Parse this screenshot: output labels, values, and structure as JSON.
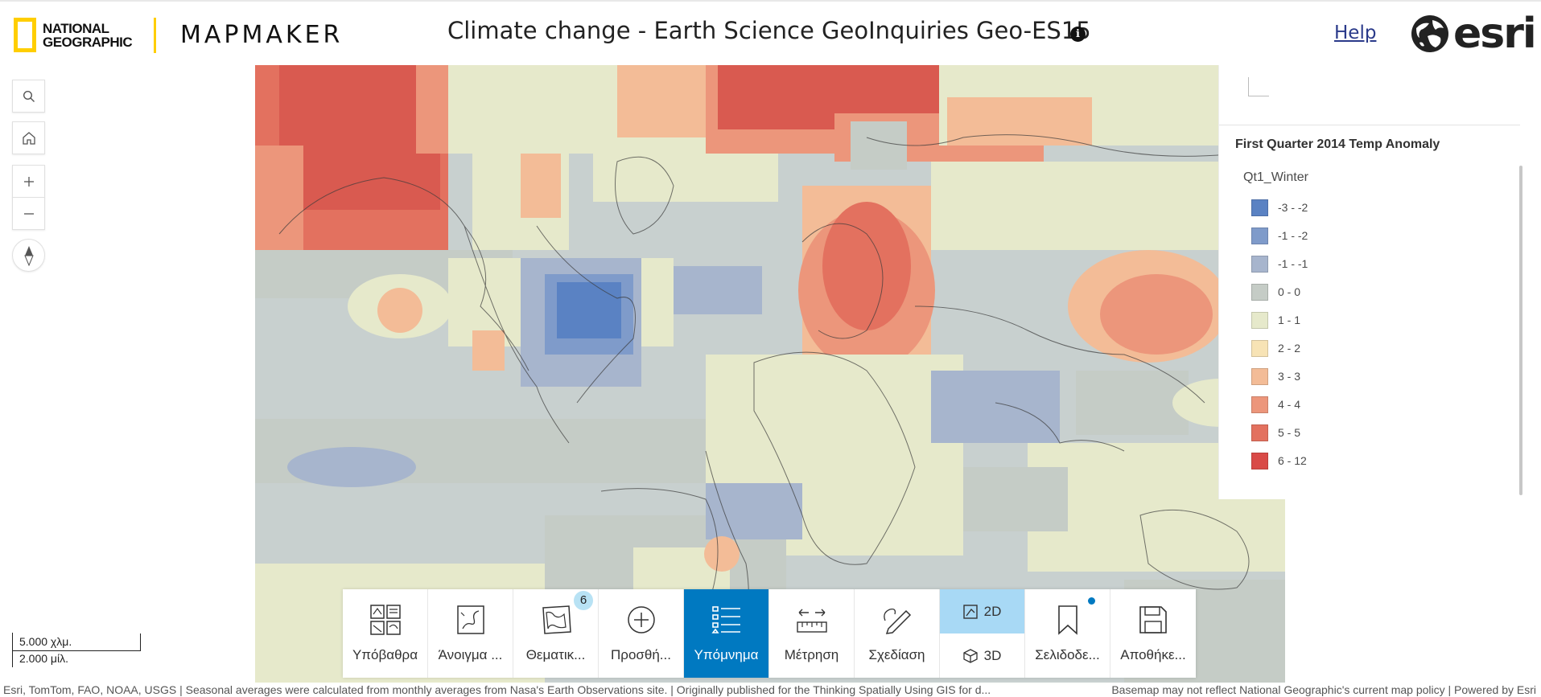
{
  "header": {
    "brand_line1": "NATIONAL",
    "brand_line2": "GEOGRAPHIC",
    "app_name": "MAPMAKER",
    "title": "Climate change - Earth Science GeoInquiries Geo-ES15",
    "info_icon": "i",
    "help_label": "Help",
    "esri_label": "esri"
  },
  "left_tools": [
    {
      "name": "search",
      "icon": "search-icon"
    },
    {
      "name": "home",
      "icon": "home-icon"
    },
    {
      "name": "zoom-in",
      "icon": "plus-icon"
    },
    {
      "name": "zoom-out",
      "icon": "minus-icon"
    },
    {
      "name": "compass",
      "icon": "compass-icon"
    }
  ],
  "legend": {
    "title": "First Quarter 2014 Temp Anomaly",
    "field": "Qt1_Winter",
    "items": [
      {
        "label": "-3 - -2",
        "color": "#5a82c3"
      },
      {
        "label": "-1 - -2",
        "color": "#7f9bca"
      },
      {
        "label": "-1 - -1",
        "color": "#a7b5cd"
      },
      {
        "label": "0 - 0",
        "color": "#c5ccc6"
      },
      {
        "label": "1 - 1",
        "color": "#e6e9cb"
      },
      {
        "label": "2 - 2",
        "color": "#f7e3b5"
      },
      {
        "label": "3 - 3",
        "color": "#f3bc97"
      },
      {
        "label": "4 - 4",
        "color": "#ec967b"
      },
      {
        "label": "5 - 5",
        "color": "#e3715f"
      },
      {
        "label": "6 - 12",
        "color": "#d94a47"
      }
    ]
  },
  "scale": {
    "km": "5.000 χλμ.",
    "mi": "2.000 μίλ."
  },
  "toolbar": {
    "basemaps": "Υπόβαθρα",
    "open": "Άνοιγμα ...",
    "thematic": "Θεματικ...",
    "thematic_badge": "6",
    "add": "Προσθή...",
    "legend": "Υπόμνημα",
    "measure": "Μέτρηση",
    "draw": "Σχεδίαση",
    "view_2d": "2D",
    "view_3d": "3D",
    "bookmarks": "Σελιδοδε...",
    "save": "Αποθήκε..."
  },
  "attribution": {
    "left": "Esri, TomTom, FAO, NOAA, USGS | Seasonal averages were calculated from monthly averages from Nasa's Earth Observations site. | Originally published for the Thinking Spatially Using GIS for d...",
    "right": "Basemap may not reflect National Geographic's current map policy | Powered by Esri"
  }
}
